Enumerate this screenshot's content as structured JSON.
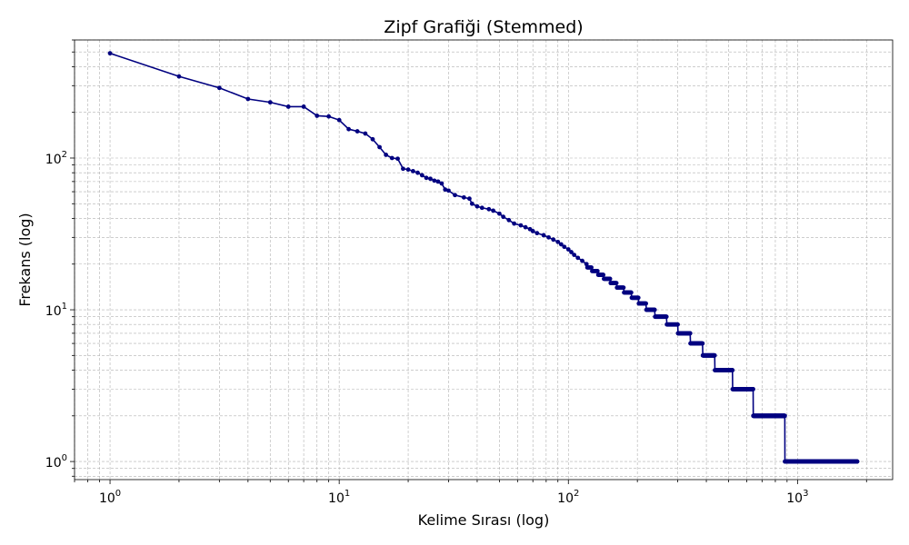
{
  "chart_data": {
    "type": "line",
    "title": "Zipf Grafiği (Stemmed)",
    "xlabel": "Kelime Sırası (log)",
    "ylabel": "Frekans (log)",
    "xscale": "log",
    "yscale": "log",
    "xlim": [
      0.7,
      2600
    ],
    "ylim": [
      0.76,
      600
    ],
    "grid": true,
    "grid_minor": true,
    "series_color": "#000080",
    "x_ticks": [
      {
        "value": 1,
        "base": "10",
        "exp": "0"
      },
      {
        "value": 10,
        "base": "10",
        "exp": "1"
      },
      {
        "value": 100,
        "base": "10",
        "exp": "2"
      },
      {
        "value": 1000,
        "base": "10",
        "exp": "3"
      }
    ],
    "y_ticks": [
      {
        "value": 1,
        "base": "10",
        "exp": "0"
      },
      {
        "value": 10,
        "base": "10",
        "exp": "1"
      },
      {
        "value": 100,
        "base": "10",
        "exp": "2"
      }
    ],
    "series": [
      {
        "rank_points": [
          [
            1,
            490
          ],
          [
            2,
            345
          ],
          [
            3,
            290
          ],
          [
            4,
            245
          ],
          [
            5,
            233
          ],
          [
            6,
            218
          ],
          [
            7,
            218
          ],
          [
            8,
            190
          ],
          [
            9,
            188
          ],
          [
            10,
            178
          ],
          [
            11,
            155
          ],
          [
            12,
            150
          ],
          [
            13,
            145
          ],
          [
            14,
            133
          ],
          [
            15,
            118
          ],
          [
            16,
            105
          ],
          [
            17,
            100
          ],
          [
            18,
            99
          ],
          [
            19,
            85
          ],
          [
            20,
            84
          ],
          [
            21,
            82
          ],
          [
            22,
            80
          ],
          [
            23,
            77
          ],
          [
            24,
            74
          ],
          [
            25,
            73
          ],
          [
            26,
            71
          ],
          [
            27,
            70
          ],
          [
            28,
            68
          ],
          [
            29,
            62
          ],
          [
            30,
            61
          ],
          [
            32,
            57
          ],
          [
            35,
            55
          ],
          [
            37,
            54
          ],
          [
            38,
            50
          ],
          [
            40,
            48
          ],
          [
            42,
            47
          ],
          [
            45,
            46
          ],
          [
            47,
            45
          ],
          [
            50,
            43
          ],
          [
            52,
            41
          ],
          [
            55,
            39
          ],
          [
            58,
            37
          ],
          [
            62,
            36
          ],
          [
            65,
            35
          ],
          [
            68,
            34
          ],
          [
            70,
            33
          ],
          [
            73,
            32
          ],
          [
            78,
            31
          ],
          [
            82,
            30
          ],
          [
            86,
            29
          ],
          [
            90,
            28
          ],
          [
            93,
            27
          ],
          [
            96,
            26
          ],
          [
            100,
            25
          ],
          [
            103,
            24
          ],
          [
            106,
            23
          ],
          [
            110,
            22
          ],
          [
            115,
            21
          ],
          [
            120,
            20
          ]
        ],
        "level_ranges": [
          {
            "frequency": 19,
            "from_rank": 121,
            "to_rank": 126
          },
          {
            "frequency": 18,
            "from_rank": 127,
            "to_rank": 134
          },
          {
            "frequency": 17,
            "from_rank": 135,
            "to_rank": 142
          },
          {
            "frequency": 16,
            "from_rank": 143,
            "to_rank": 152
          },
          {
            "frequency": 15,
            "from_rank": 153,
            "to_rank": 162
          },
          {
            "frequency": 14,
            "from_rank": 163,
            "to_rank": 174
          },
          {
            "frequency": 13,
            "from_rank": 175,
            "to_rank": 188
          },
          {
            "frequency": 12,
            "from_rank": 189,
            "to_rank": 202
          },
          {
            "frequency": 11,
            "from_rank": 203,
            "to_rank": 218
          },
          {
            "frequency": 10,
            "from_rank": 219,
            "to_rank": 238
          },
          {
            "frequency": 9,
            "from_rank": 239,
            "to_rank": 268
          },
          {
            "frequency": 8,
            "from_rank": 269,
            "to_rank": 300
          },
          {
            "frequency": 7,
            "from_rank": 301,
            "to_rank": 340
          },
          {
            "frequency": 6,
            "from_rank": 341,
            "to_rank": 385
          },
          {
            "frequency": 5,
            "from_rank": 386,
            "to_rank": 435
          },
          {
            "frequency": 4,
            "from_rank": 436,
            "to_rank": 520
          },
          {
            "frequency": 3,
            "from_rank": 521,
            "to_rank": 640
          },
          {
            "frequency": 2,
            "from_rank": 641,
            "to_rank": 880
          },
          {
            "frequency": 1,
            "from_rank": 881,
            "to_rank": 1820
          }
        ]
      }
    ]
  }
}
